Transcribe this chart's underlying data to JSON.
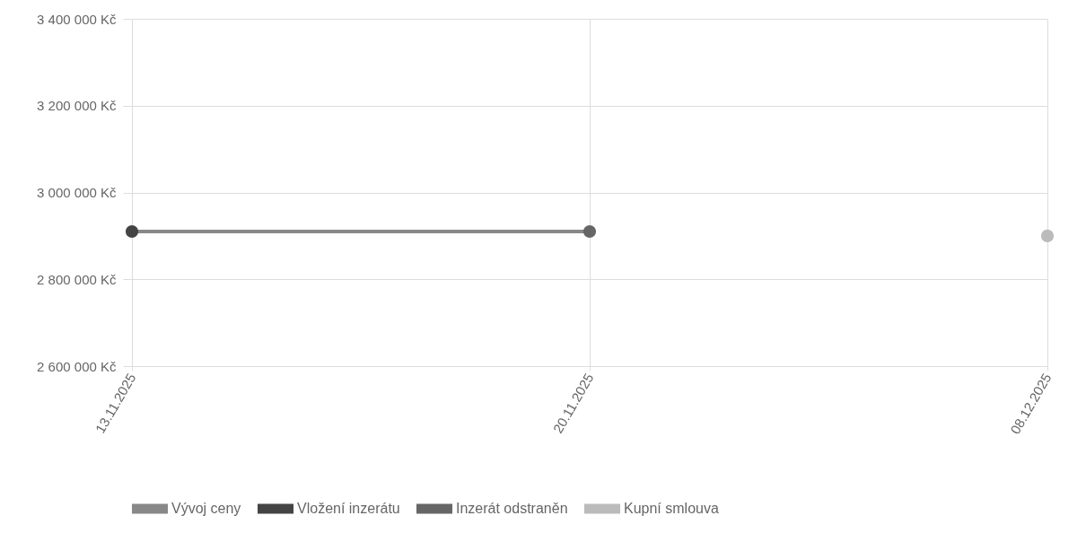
{
  "chart_data": {
    "type": "line",
    "categories": [
      "13.11.2025",
      "20.11.2025",
      "08.12.2025"
    ],
    "series": [
      {
        "name": "Vývoj ceny",
        "color": "#888888",
        "marker": "none",
        "values": [
          2910000,
          2910000,
          null
        ]
      },
      {
        "name": "Vložení inzerátu",
        "type": "scatter",
        "color": "#444444",
        "marker": "circle",
        "values": [
          2910000,
          null,
          null
        ]
      },
      {
        "name": "Inzerát odstraněn",
        "type": "scatter",
        "color": "#666666",
        "marker": "circle",
        "values": [
          null,
          2910000,
          null
        ]
      },
      {
        "name": "Kupní smlouva",
        "type": "scatter",
        "color": "#bbbbbb",
        "marker": "circle",
        "values": [
          null,
          null,
          2900000
        ]
      }
    ],
    "ylim": [
      2600000,
      3400000
    ],
    "yticks": [
      {
        "value": 2600000,
        "label": "2 600 000 Kč"
      },
      {
        "value": 2800000,
        "label": "2 800 000 Kč"
      },
      {
        "value": 3000000,
        "label": "3 000 000 Kč"
      },
      {
        "value": 3200000,
        "label": "3 200 000 Kč"
      },
      {
        "value": 3400000,
        "label": "3 400 000 Kč"
      }
    ],
    "grid": true,
    "legend": "bottom"
  }
}
